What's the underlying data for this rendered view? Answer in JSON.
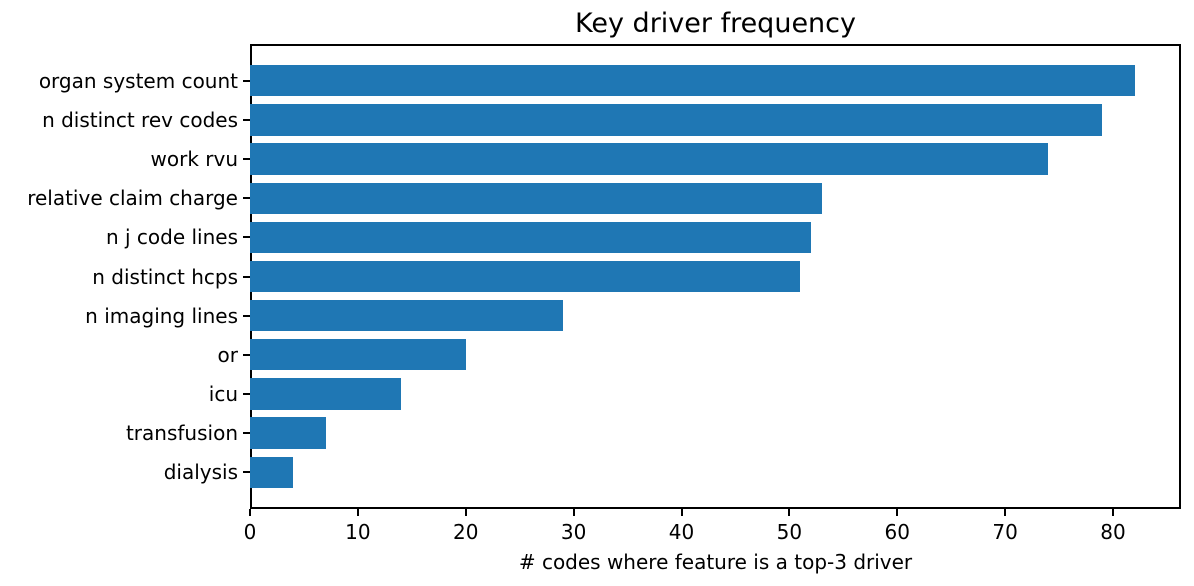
{
  "chart_data": {
    "type": "bar",
    "orientation": "horizontal",
    "title": "Key driver frequency",
    "xlabel": "# codes where feature is a top-3 driver",
    "ylabel": "",
    "categories": [
      "organ system count",
      "n distinct rev codes",
      "work rvu",
      "relative claim charge",
      "n j code lines",
      "n distinct hcps",
      "n imaging lines",
      "or",
      "icu",
      "transfusion",
      "dialysis"
    ],
    "values": [
      82,
      79,
      74,
      53,
      52,
      51,
      29,
      20,
      14,
      7,
      4
    ],
    "xticks": [
      0,
      10,
      20,
      30,
      40,
      50,
      60,
      70,
      80
    ],
    "xlim": [
      0,
      86.3
    ],
    "grid": false,
    "legend": "none",
    "bar_color": "#1f77b4",
    "spine_color": "#000000",
    "text_color": "#000000"
  }
}
